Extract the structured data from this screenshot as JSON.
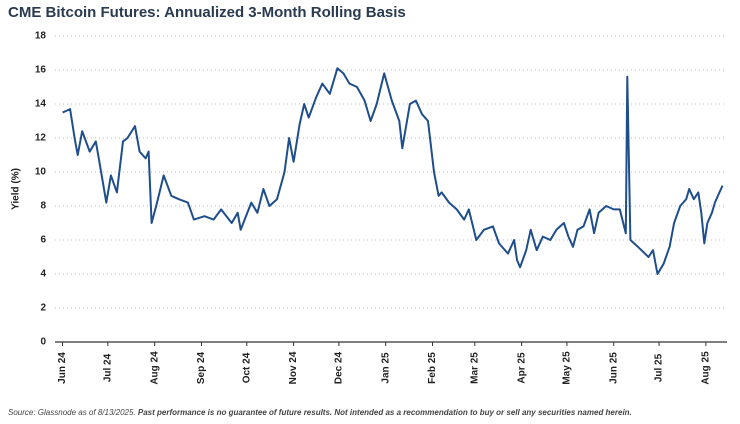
{
  "chart_data": {
    "type": "line",
    "title": "CME Bitcoin Futures: Annualized 3-Month Rolling Basis",
    "y_label": "Yield (%)",
    "source": "Source: Glassnode as of 8/13/2025.",
    "disclaimer": "Past performance is no guarantee of future results. Not intended as a recommendation to buy or sell any securities named herein.",
    "x": [
      0,
      5,
      8,
      10,
      13,
      18,
      22,
      24,
      29,
      32,
      36,
      40,
      43,
      48,
      51,
      55,
      57,
      59,
      62,
      67,
      72,
      77,
      83,
      87,
      94,
      100,
      105,
      112,
      116,
      118,
      125,
      129,
      133,
      137,
      142,
      147,
      150,
      153,
      157,
      160,
      163,
      168,
      172,
      177,
      182,
      186,
      190,
      195,
      200,
      204,
      208,
      213,
      218,
      223,
      225,
      230,
      234,
      238,
      242,
      246,
      249,
      251,
      256,
      261,
      266,
      269,
      274,
      279,
      285,
      289,
      295,
      299,
      301,
      303,
      307,
      310,
      314,
      318,
      323,
      327,
      332,
      335,
      338,
      341,
      345,
      349,
      352,
      355,
      360,
      365,
      369,
      373,
      374,
      376,
      381,
      388,
      391,
      394,
      398,
      402,
      405,
      409,
      413,
      415,
      418,
      421,
      423,
      425,
      427,
      430,
      432,
      434,
      437
    ],
    "series": [
      {
        "name": "Annualized 3-Month Rolling Basis",
        "color": "#1f4e8c",
        "values": [
          13.5,
          13.7,
          12.0,
          11.0,
          12.4,
          11.2,
          11.8,
          10.8,
          8.2,
          9.8,
          8.8,
          11.8,
          12.0,
          12.7,
          11.2,
          10.8,
          11.2,
          7.0,
          8.0,
          9.8,
          8.6,
          8.4,
          8.2,
          7.2,
          7.4,
          7.2,
          7.8,
          7.0,
          7.6,
          6.6,
          8.2,
          7.6,
          9.0,
          8.0,
          8.4,
          10.0,
          12.0,
          10.6,
          12.8,
          14.0,
          13.2,
          14.4,
          15.2,
          14.6,
          16.1,
          15.8,
          15.2,
          15.0,
          14.2,
          13.0,
          14.0,
          15.8,
          14.2,
          13.0,
          11.4,
          14.0,
          14.2,
          13.4,
          13.0,
          10.0,
          8.6,
          8.8,
          8.2,
          7.8,
          7.2,
          7.8,
          6.0,
          6.6,
          6.8,
          5.8,
          5.2,
          6.0,
          4.8,
          4.4,
          5.4,
          6.6,
          5.4,
          6.2,
          6.0,
          6.6,
          7.0,
          6.2,
          5.6,
          6.6,
          6.8,
          7.8,
          6.4,
          7.6,
          8.0,
          7.8,
          7.8,
          6.4,
          15.6,
          6.0,
          5.6,
          5.0,
          5.4,
          4.0,
          4.6,
          5.6,
          7.0,
          8.0,
          8.4,
          9.0,
          8.4,
          8.8,
          7.6,
          5.8,
          7.0,
          7.6,
          8.2,
          8.6,
          9.2
        ]
      }
    ],
    "xlim": [
      -5,
      440
    ],
    "xticks": [
      {
        "value": 0,
        "label": "Jun 24"
      },
      {
        "value": 30,
        "label": "Jul 24"
      },
      {
        "value": 61,
        "label": "Aug 24"
      },
      {
        "value": 92,
        "label": "Sep 24"
      },
      {
        "value": 122,
        "label": "Oct 24"
      },
      {
        "value": 153,
        "label": "Nov 24"
      },
      {
        "value": 183,
        "label": "Dec 24"
      },
      {
        "value": 214,
        "label": "Jan 25"
      },
      {
        "value": 245,
        "label": "Feb 25"
      },
      {
        "value": 273,
        "label": "Mar 25"
      },
      {
        "value": 304,
        "label": "Apr 25"
      },
      {
        "value": 334,
        "label": "May 25"
      },
      {
        "value": 365,
        "label": "Jun 25"
      },
      {
        "value": 395,
        "label": "Jul 25"
      },
      {
        "value": 426,
        "label": "Aug 25"
      }
    ],
    "ylim": [
      0,
      18
    ],
    "yticks": [
      0,
      2,
      4,
      6,
      8,
      10,
      12,
      14,
      16,
      18
    ],
    "grid": true
  }
}
